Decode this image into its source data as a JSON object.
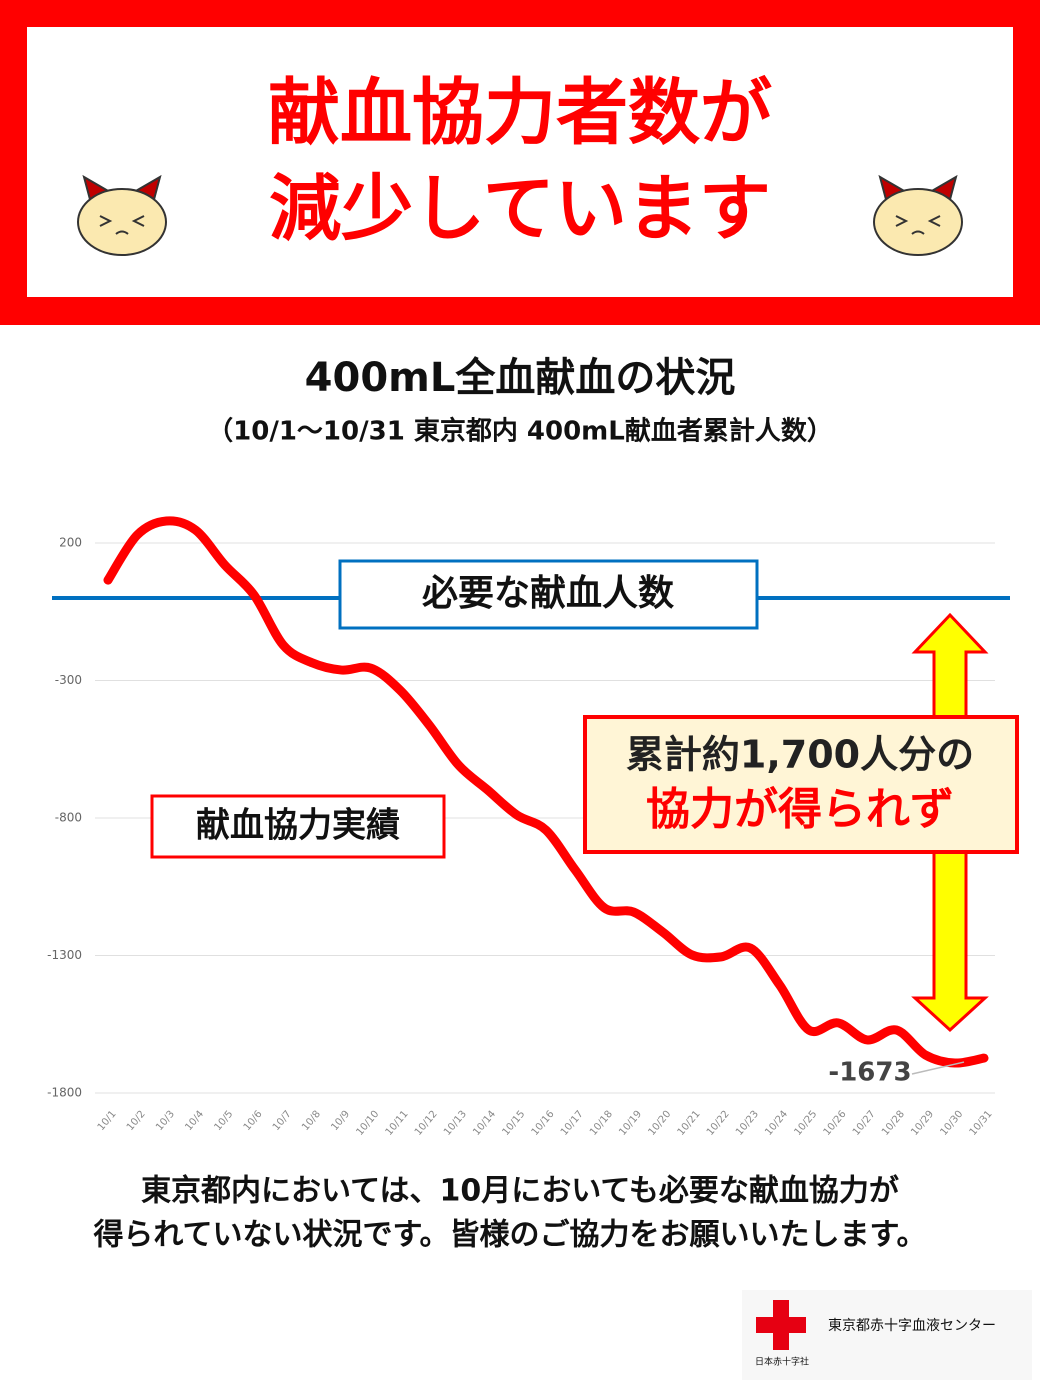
{
  "header": {
    "title_lines": [
      "献血協力者数が",
      "減少しています"
    ]
  },
  "chart_data": {
    "type": "line",
    "title": "400mL全血献血の状況",
    "subtitle": "（10/1～10/31 東京都内 400mL献血者累計人数）",
    "categories": [
      "10/1",
      "10/2",
      "10/3",
      "10/4",
      "10/5",
      "10/6",
      "10/7",
      "10/8",
      "10/9",
      "10/10",
      "10/11",
      "10/12",
      "10/13",
      "10/14",
      "10/15",
      "10/16",
      "10/17",
      "10/18",
      "10/19",
      "10/20",
      "10/21",
      "10/22",
      "10/23",
      "10/24",
      "10/25",
      "10/26",
      "10/27",
      "10/28",
      "10/29",
      "10/30",
      "10/31"
    ],
    "series": [
      {
        "name": "献血協力実績",
        "color": "#ff0000",
        "values": [
          65,
          229,
          280,
          247,
          120,
          11,
          -171,
          -236,
          -262,
          -255,
          -335,
          -462,
          -607,
          -698,
          -789,
          -844,
          -989,
          -1127,
          -1142,
          -1215,
          -1298,
          -1305,
          -1273,
          -1407,
          -1571,
          -1545,
          -1607,
          -1571,
          -1662,
          -1691,
          -1673
        ]
      }
    ],
    "target": {
      "name": "必要な献血人数",
      "value": 0,
      "color": "#0070c0"
    },
    "annotation_lines": [
      "累計約1,700人分の",
      "協力が得られず"
    ],
    "ylim": [
      -1800,
      300
    ],
    "yticks": [
      -1800,
      -1300,
      -800,
      -300,
      200
    ],
    "grid": true
  },
  "footer": {
    "lines": [
      "東京都内においては、10月においても必要な献血協力が",
      "得られていない状況です。皆様のご協力をお願いいたします。"
    ],
    "organization": "東京都赤十字血液センター",
    "parent": "日本赤十字社"
  }
}
